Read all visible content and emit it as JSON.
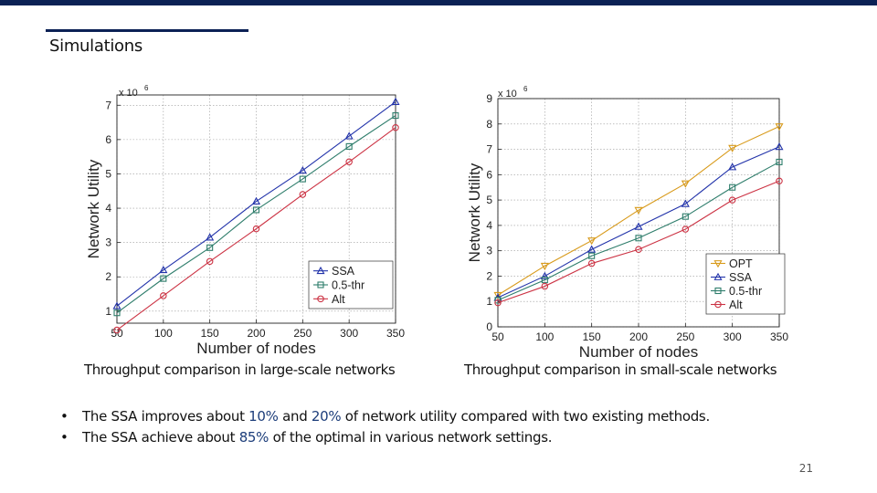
{
  "slide": {
    "title": "Simulations",
    "page_number": "21",
    "accent_color": "#0b2155",
    "highlight_color": "#1c3d7a",
    "bullets": [
      {
        "marker": "•",
        "parts": [
          "The SSA improves about ",
          "10%",
          " and ",
          "20%",
          " of network utility compared with two existing methods."
        ]
      },
      {
        "marker": "•",
        "parts": [
          "The SSA achieve about ",
          "85%",
          " of the optimal in various network settings."
        ]
      }
    ]
  },
  "chart_data": [
    {
      "type": "line",
      "caption": "Throughput comparison in large-scale networks",
      "xlabel": "Number of nodes",
      "ylabel": "Network Utility",
      "y_exponent_label": "x 10",
      "y_exponent": "6",
      "x": [
        50,
        100,
        150,
        200,
        250,
        300,
        350
      ],
      "xlim": [
        50,
        350
      ],
      "ylim": [
        0.65,
        7.3
      ],
      "yticks": [
        1,
        2,
        3,
        4,
        5,
        6,
        7
      ],
      "ytick_labels": [
        "1",
        "2",
        "3",
        "4",
        "5",
        "6",
        "7"
      ],
      "grid": true,
      "legend_position": "lower-right",
      "series": [
        {
          "name": "SSA",
          "color": "#2233aa",
          "marker": "triangle",
          "values": [
            1.15,
            2.2,
            3.15,
            4.2,
            5.1,
            6.1,
            7.1
          ]
        },
        {
          "name": "0.5-thr",
          "color": "#2e7d6b",
          "marker": "square",
          "values": [
            0.95,
            1.95,
            2.85,
            3.95,
            4.85,
            5.8,
            6.7
          ]
        },
        {
          "name": "Alt",
          "color": "#cc3344",
          "marker": "circle",
          "values": [
            0.45,
            1.45,
            2.45,
            3.4,
            4.4,
            5.35,
            6.35
          ]
        }
      ]
    },
    {
      "type": "line",
      "caption": "Throughput comparison in small-scale networks",
      "xlabel": "Number of nodes",
      "ylabel": "Network Utility",
      "y_exponent_label": "x 10",
      "y_exponent": "6",
      "x": [
        50,
        100,
        150,
        200,
        250,
        300,
        350
      ],
      "xlim": [
        50,
        350
      ],
      "ylim": [
        0,
        9
      ],
      "yticks": [
        0,
        1,
        2,
        3,
        4,
        5,
        6,
        7,
        8,
        9
      ],
      "ytick_labels": [
        "0",
        "1",
        "2",
        "3",
        "4",
        "5",
        "6",
        "7",
        "8",
        "9"
      ],
      "grid": true,
      "legend_position": "lower-right",
      "series": [
        {
          "name": "OPT",
          "color": "#d89a1a",
          "marker": "triangle-down",
          "values": [
            1.25,
            2.4,
            3.4,
            4.6,
            5.65,
            7.05,
            7.9
          ]
        },
        {
          "name": "SSA",
          "color": "#2233aa",
          "marker": "triangle",
          "values": [
            1.15,
            2.0,
            3.05,
            3.95,
            4.85,
            6.3,
            7.1
          ]
        },
        {
          "name": "0.5-thr",
          "color": "#2e7d6b",
          "marker": "square",
          "values": [
            1.05,
            1.85,
            2.8,
            3.5,
            4.35,
            5.5,
            6.5
          ]
        },
        {
          "name": "Alt",
          "color": "#cc3344",
          "marker": "circle",
          "values": [
            0.95,
            1.6,
            2.5,
            3.05,
            3.85,
            5.0,
            5.75
          ]
        }
      ]
    }
  ]
}
